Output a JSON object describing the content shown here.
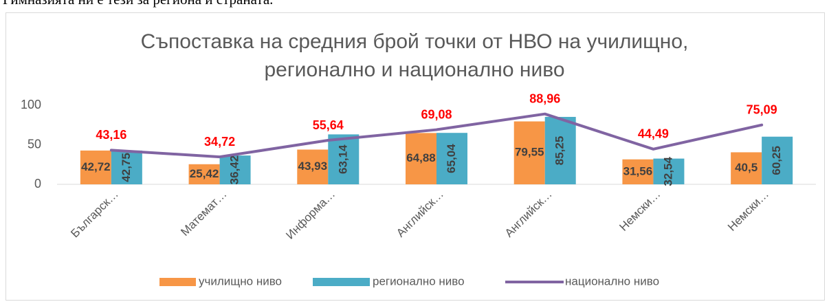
{
  "page_text": "Гимназията ни е тези за региона и страната.",
  "chart_data": {
    "type": "bar",
    "title": "Съпоставка на средния брой точки от НВО на училищно, регионално и национално ниво",
    "categories": [
      "Българск…",
      "Математ…",
      "Информа…",
      "Английск…",
      "Английск…",
      "Немски…",
      "Немски…"
    ],
    "series": [
      {
        "name": "училищно ниво",
        "type": "bar",
        "color": "#f79646",
        "values": [
          42.72,
          25.42,
          43.93,
          64.88,
          79.55,
          31.56,
          40.5
        ],
        "value_labels": [
          "42,72",
          "25,42",
          "43,93",
          "64,88",
          "79,55",
          "31,56",
          "40,5"
        ]
      },
      {
        "name": "регионално ниво",
        "type": "bar",
        "color": "#4bacc6",
        "values": [
          42.75,
          36.42,
          63.14,
          65.04,
          85.25,
          32.54,
          60.25
        ],
        "value_labels": [
          "42,75",
          "36,42",
          "63,14",
          "65,04",
          "85,25",
          "32,54",
          "60,25"
        ]
      },
      {
        "name": "национално ниво",
        "type": "line",
        "color": "#8064a2",
        "values": [
          43.16,
          34.72,
          55.64,
          69.08,
          88.96,
          44.49,
          75.09
        ],
        "value_labels": [
          "43,16",
          "34,72",
          "55,64",
          "69,08",
          "88,96",
          "44,49",
          "75,09"
        ]
      }
    ],
    "ylim": [
      0,
      100
    ],
    "yticks": [
      0,
      50,
      100
    ],
    "legend": "bottom"
  }
}
